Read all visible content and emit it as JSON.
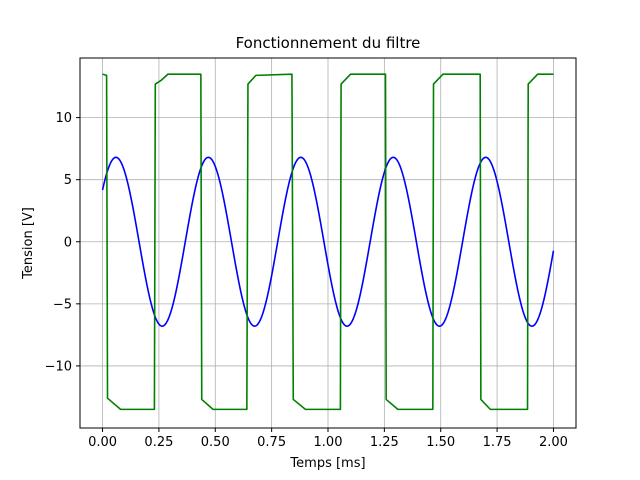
{
  "chart_data": {
    "type": "line",
    "title": "Fonctionnement du filtre",
    "xlabel": "Temps [ms]",
    "ylabel": "Tension [V]",
    "xlim": [
      -0.1,
      2.1
    ],
    "ylim": [
      -15.0,
      14.8
    ],
    "xticks": [
      0.0,
      0.25,
      0.5,
      0.75,
      1.0,
      1.25,
      1.5,
      1.75,
      2.0
    ],
    "xtick_labels": [
      "0.00",
      "0.25",
      "0.50",
      "0.75",
      "1.00",
      "1.25",
      "1.50",
      "1.75",
      "2.00"
    ],
    "yticks": [
      -10,
      -5,
      0,
      5,
      10
    ],
    "ytick_labels": [
      "−10",
      "−5",
      "0",
      "5",
      "10"
    ],
    "grid": true,
    "series": [
      {
        "color": "#0000ff",
        "style": "sinusoid",
        "amplitude": 6.8,
        "period_ms": 0.41,
        "phase_rad": 0.66,
        "x_start": 0.0,
        "x_end": 2.0
      },
      {
        "color": "#008000",
        "style": "square",
        "points": [
          [
            0.0,
            13.5
          ],
          [
            0.018,
            13.4
          ],
          [
            0.022,
            -12.6
          ],
          [
            0.08,
            -13.5
          ],
          [
            0.23,
            -13.5
          ],
          [
            0.234,
            12.7
          ],
          [
            0.26,
            13.0
          ],
          [
            0.29,
            13.5
          ],
          [
            0.436,
            13.5
          ],
          [
            0.44,
            -12.7
          ],
          [
            0.49,
            -13.5
          ],
          [
            0.64,
            -13.5
          ],
          [
            0.645,
            12.7
          ],
          [
            0.68,
            13.4
          ],
          [
            0.84,
            13.5
          ],
          [
            0.846,
            -12.7
          ],
          [
            0.9,
            -13.5
          ],
          [
            1.055,
            -13.5
          ],
          [
            1.058,
            12.7
          ],
          [
            1.1,
            13.5
          ],
          [
            1.255,
            13.5
          ],
          [
            1.258,
            -12.7
          ],
          [
            1.31,
            -13.5
          ],
          [
            1.465,
            -13.5
          ],
          [
            1.468,
            12.7
          ],
          [
            1.51,
            13.5
          ],
          [
            1.675,
            13.5
          ],
          [
            1.678,
            -12.7
          ],
          [
            1.72,
            -13.5
          ],
          [
            1.885,
            -13.5
          ],
          [
            1.888,
            12.7
          ],
          [
            1.93,
            13.5
          ],
          [
            2.0,
            13.5
          ]
        ]
      }
    ]
  }
}
